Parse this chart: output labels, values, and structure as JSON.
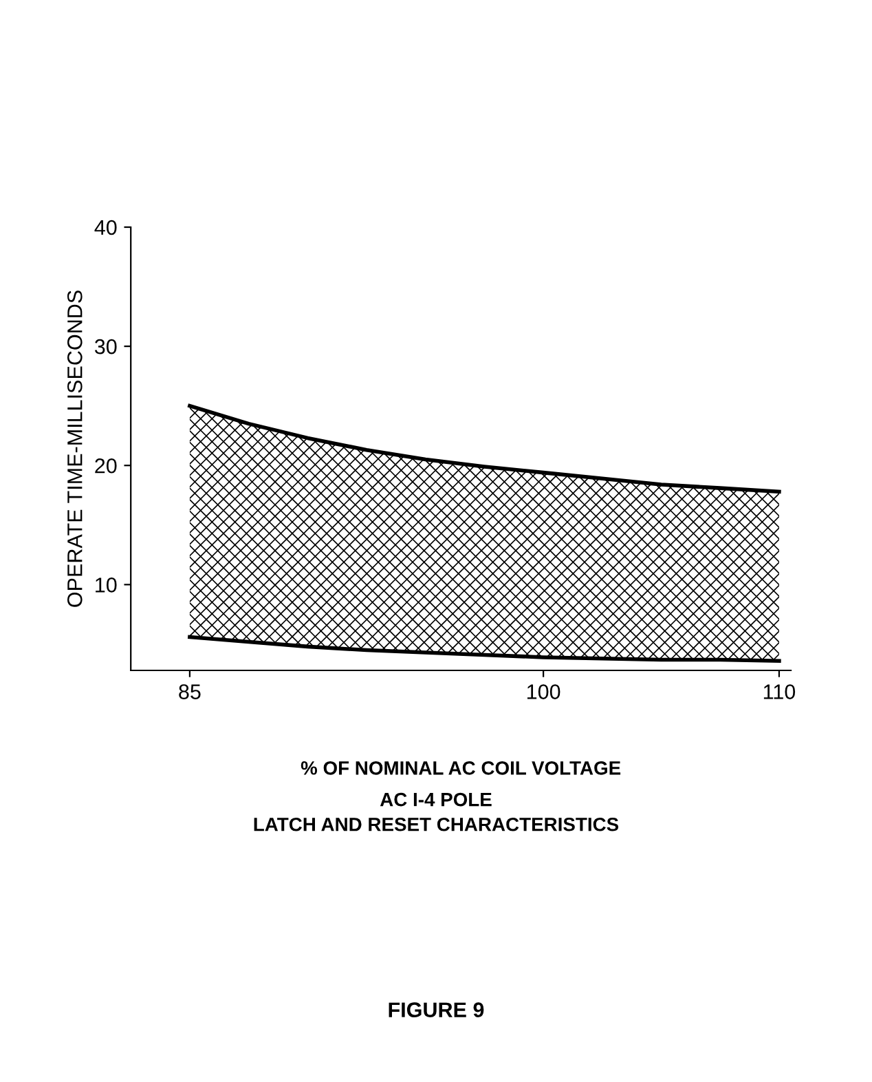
{
  "chart_data": {
    "type": "line",
    "xlabel": "% OF NOMINAL AC COIL VOLTAGE",
    "ylabel": "OPERATE TIME-MILLISECONDS",
    "x": [
      85,
      87.5,
      90,
      92.5,
      95,
      97.5,
      100,
      102.5,
      105,
      107.5,
      110
    ],
    "series": [
      {
        "color": "#000000",
        "values": [
          5.6,
          5.2,
          4.8,
          4.5,
          4.3,
          4.1,
          3.9,
          3.8,
          3.7,
          3.7,
          3.6
        ]
      },
      {
        "color": "#000000",
        "values": [
          25,
          23.5,
          22.3,
          21.3,
          20.5,
          19.9,
          19.4,
          18.9,
          18.4,
          18.1,
          17.8
        ],
        "lower": [
          5.6,
          5.2,
          4.8,
          4.5,
          4.3,
          4.1,
          3.9,
          3.8,
          3.7,
          3.7,
          3.6
        ],
        "upper": [
          25,
          23.5,
          22.3,
          21.3,
          20.5,
          19.9,
          19.4,
          18.9,
          18.4,
          18.1,
          17.8
        ]
      }
    ],
    "xlim": [
      82.5,
      110.5
    ],
    "xticks": [
      85,
      100,
      110
    ],
    "ylim": [
      2.8,
      40
    ],
    "yticks": [
      10,
      20,
      30,
      40
    ],
    "grid": false,
    "annotations": [
      "AC I-4 POLE",
      "LATCH AND RESET CHARACTERISTICS",
      "FIGURE 9"
    ]
  }
}
